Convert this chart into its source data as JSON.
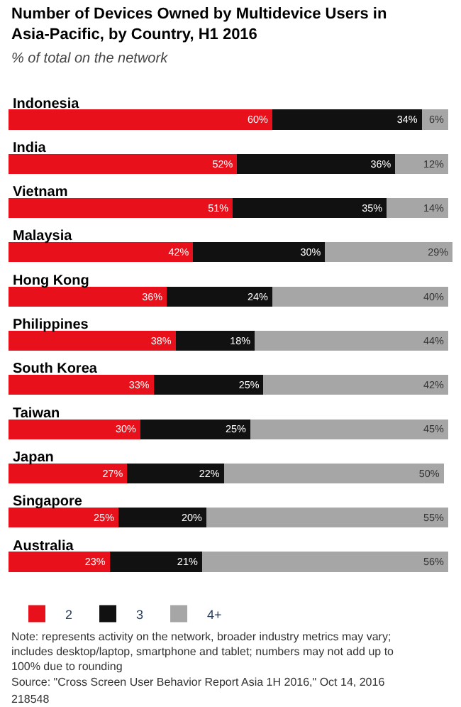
{
  "chart_data": {
    "type": "bar",
    "orientation": "horizontal",
    "stacked": true,
    "title": "Number of Devices Owned by Multidevice Users in Asia-Pacific, by Country, H1 2016",
    "subtitle": "% of total on the network",
    "categories": [
      "Indonesia",
      "India",
      "Vietnam",
      "Malaysia",
      "Hong Kong",
      "Philippines",
      "South Korea",
      "Taiwan",
      "Japan",
      "Singapore",
      "Australia"
    ],
    "series": [
      {
        "name": "2",
        "color": "#e8101a",
        "values": [
          60,
          52,
          51,
          42,
          36,
          38,
          33,
          30,
          27,
          25,
          23
        ],
        "value_labels": [
          "60%",
          "52%",
          "51%",
          "42%",
          "36%",
          "38%",
          "33%",
          "30%",
          "27%",
          "25%",
          "23%"
        ]
      },
      {
        "name": "3",
        "color": "#111111",
        "values": [
          34,
          36,
          35,
          30,
          24,
          18,
          25,
          25,
          22,
          20,
          21
        ],
        "value_labels": [
          "34%",
          "36%",
          "35%",
          "30%",
          "24%",
          "18%",
          "25%",
          "25%",
          "22%",
          "20%",
          "21%"
        ]
      },
      {
        "name": "4+",
        "color": "#a6a6a6",
        "values": [
          6,
          12,
          14,
          29,
          40,
          44,
          42,
          45,
          50,
          55,
          56
        ],
        "value_labels": [
          "6%",
          "12%",
          "14%",
          "29%",
          "40%",
          "44%",
          "42%",
          "45%",
          "50%",
          "55%",
          "56%"
        ]
      }
    ],
    "xlim": [
      0,
      101
    ],
    "tick_labels": "y",
    "legend": "bottom left",
    "annotations": [
      "Note: represents activity on the network, broader industry metrics may vary; includes desktop/laptop, smartphone and tablet; numbers may not add up to 100% due to rounding",
      "Source: \"Cross Screen User Behavior Report Asia 1H 2016,\" Oct 14, 2016",
      "218548"
    ]
  }
}
